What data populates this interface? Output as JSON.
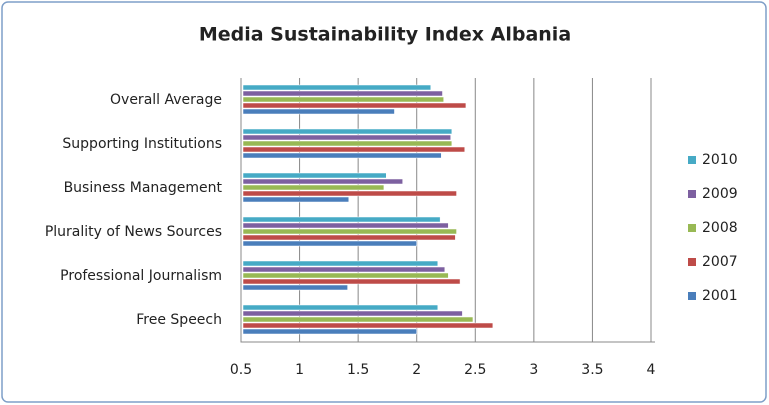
{
  "chart_data": {
    "type": "bar",
    "orientation": "horizontal",
    "title": "Media Sustainability Index Albania",
    "categories": [
      "Overall  Average",
      "Supporting Institutions",
      "Business Management",
      "Plurality of News Sources",
      "Professional Journalism",
      "Free Speech"
    ],
    "series": [
      {
        "name": "2001",
        "color": "#4a7ebb",
        "values": [
          1.81,
          2.21,
          1.42,
          2.0,
          1.41,
          2.0
        ]
      },
      {
        "name": "2007",
        "color": "#be4b48",
        "values": [
          2.42,
          2.41,
          2.34,
          2.33,
          2.37,
          2.65
        ]
      },
      {
        "name": "2008",
        "color": "#98b954",
        "values": [
          2.23,
          2.3,
          1.72,
          2.34,
          2.27,
          2.48
        ]
      },
      {
        "name": "2009",
        "color": "#7d60a0",
        "values": [
          2.22,
          2.29,
          1.88,
          2.27,
          2.24,
          2.39
        ]
      },
      {
        "name": "2010",
        "color": "#46aac5",
        "values": [
          2.12,
          2.3,
          1.74,
          2.2,
          2.18,
          2.18
        ]
      }
    ],
    "xlim": [
      0.5,
      4
    ],
    "xticks": [
      0.5,
      1,
      1.5,
      2,
      2.5,
      3,
      3.5,
      4
    ],
    "grid": true,
    "legend": "right"
  }
}
